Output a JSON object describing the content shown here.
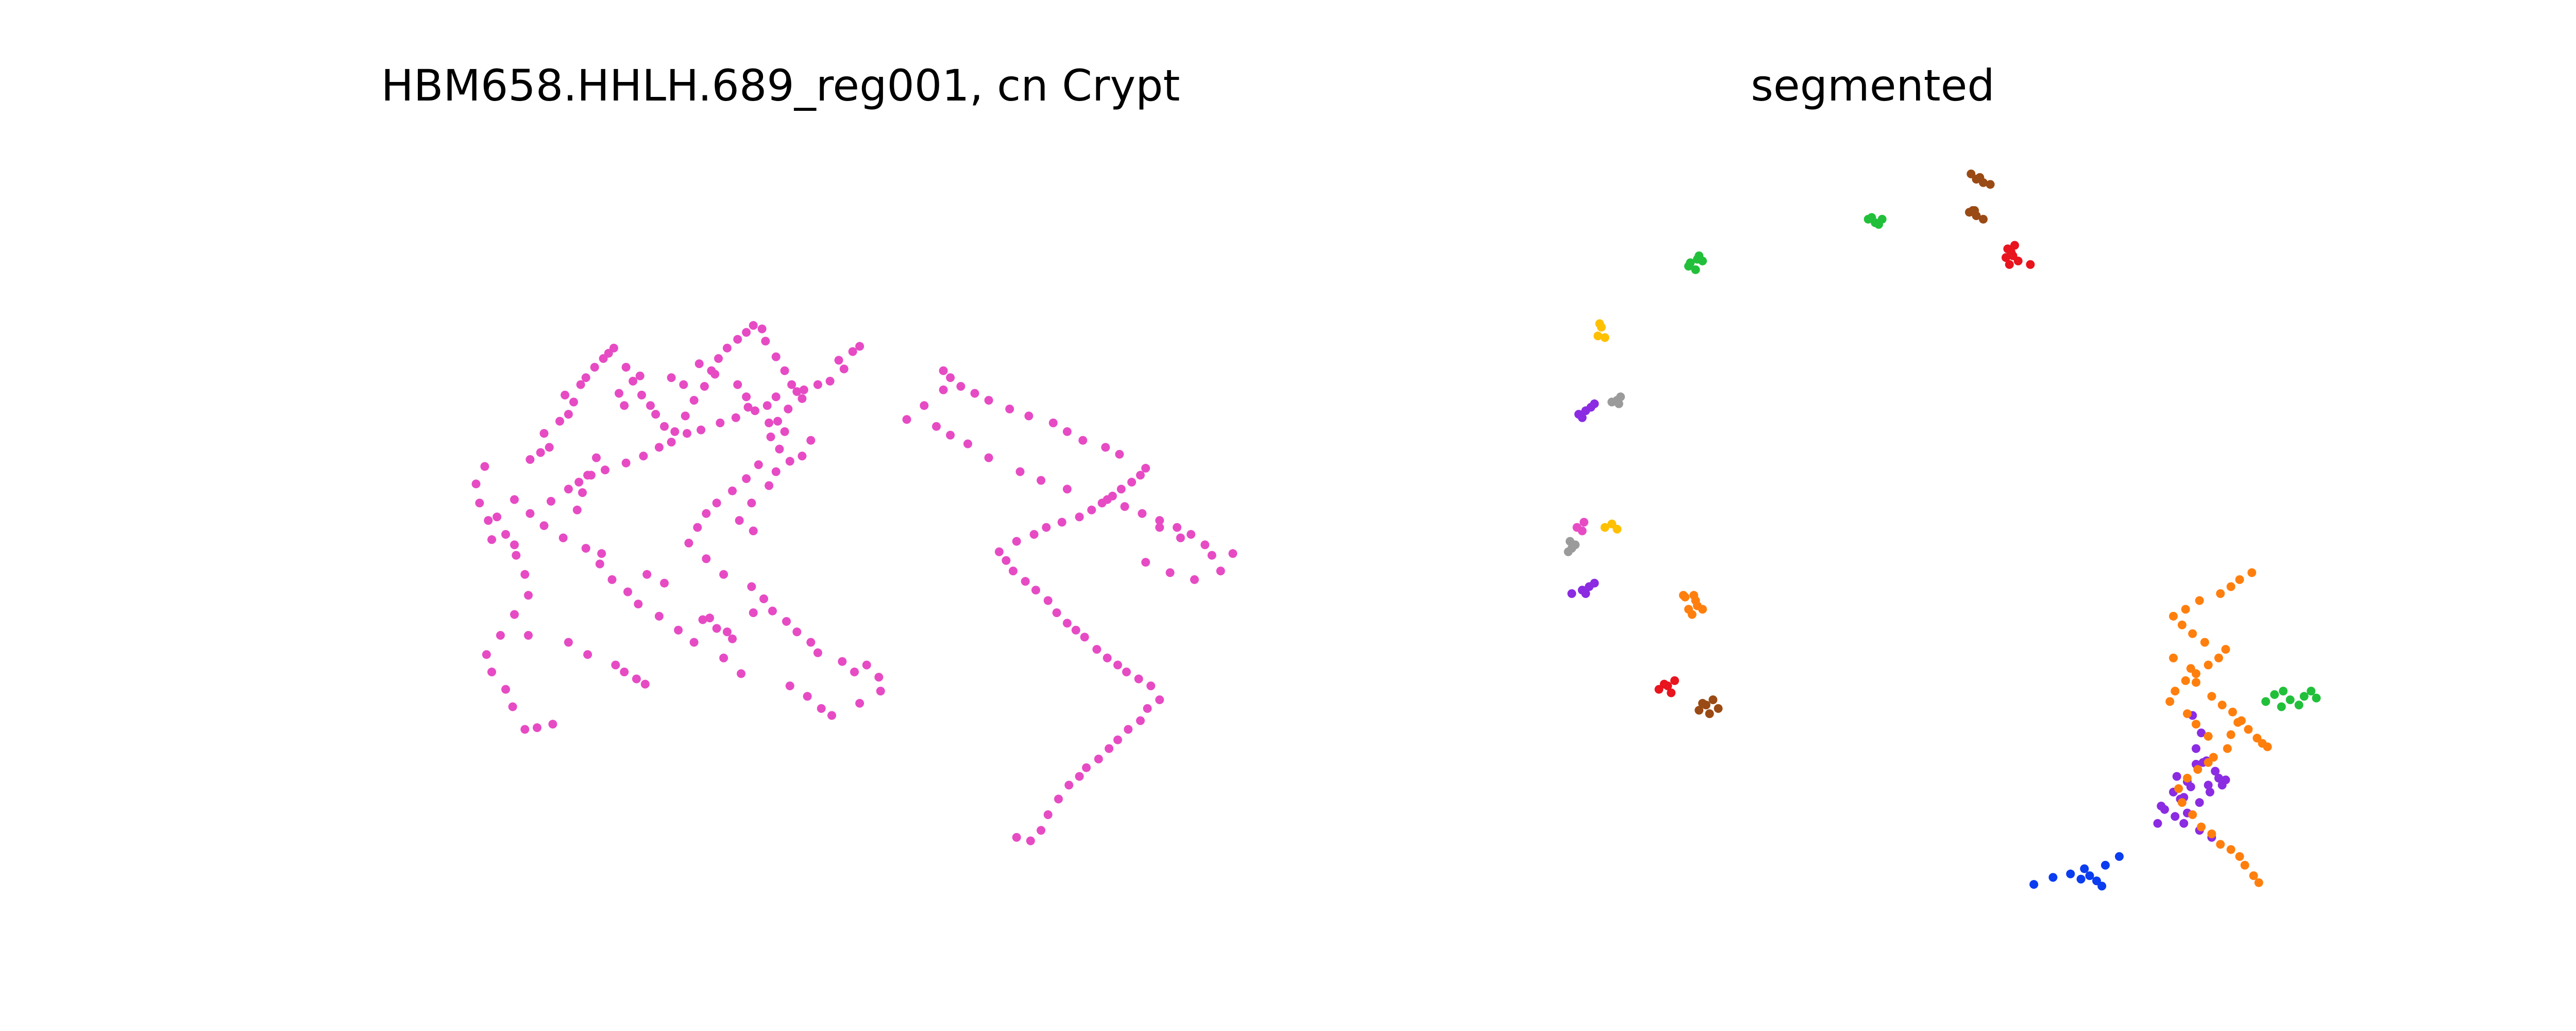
{
  "figure": {
    "background": "#ffffff",
    "point_radius_units": 1
  },
  "chart_data": [
    {
      "type": "scatter",
      "title": "HBM658.HHLH.689_reg001, cn Crypt",
      "axes_visible": false,
      "grid": false,
      "xlim": [
        0,
        520
      ],
      "ylim": [
        0,
        450
      ],
      "series": [
        {
          "color": "#e64bc4",
          "x": [
            106,
            113,
            122,
            99,
            95,
            87,
            84,
            92,
            100,
            108,
            106,
            101,
            87,
            85,
            80,
            78,
            83,
            109,
            115,
            120,
            117,
            126,
            131,
            134,
            129,
            138,
            141,
            146,
            151,
            157,
            154,
            164,
            168,
            173,
            178,
            160,
            172,
            163,
            181,
            186,
            192,
            198,
            203,
            197,
            190,
            209,
            213,
            217,
            222,
            228,
            233,
            237,
            242,
            244,
            250,
            255,
            259,
            265,
            257,
            251,
            247,
            252,
            240,
            233,
            225,
            216,
            210,
            205,
            200,
            210,
            220,
            236,
            243,
            248,
            256,
            262,
            270,
            274,
            288,
            295,
            302,
            309,
            310,
            298,
            282,
            276,
            268,
            258,
            230,
            220,
            203,
            194,
            183,
            171,
            165,
            156,
            149,
            141,
            128,
            117,
            109,
            121,
            131,
            137,
            144,
            152,
            164,
            174,
            183,
            190,
            199,
            207,
            218,
            227,
            234,
            245,
            250,
            262,
            266,
            274,
            281,
            289,
            286,
            294,
            298,
            237,
            229,
            236,
            246,
            250,
            258,
            265,
            270,
            255,
            246,
            238,
            233,
            228,
            215,
            206,
            136,
            139,
            142,
            147,
            100,
            90,
            95,
            100,
            150,
            176,
            186,
            208,
            216,
            222,
            225,
            212,
            237,
            108,
            131,
            142,
            158,
            163,
            170,
            175
          ],
          "y": [
            114,
            115,
            117,
            127,
            137,
            147,
            157,
            168,
            180,
            191,
            203,
            214,
            223,
            234,
            244,
            255,
            265,
            269,
            273,
            276,
            284,
            291,
            295,
            302,
            306,
            312,
            316,
            322,
            327,
            333,
            330,
            322,
            314,
            306,
            300,
            307,
            317,
            300,
            295,
            288,
            285,
            294,
            303,
            312,
            316,
            311,
            320,
            327,
            333,
            338,
            342,
            346,
            344,
            337,
            328,
            320,
            312,
            304,
            298,
            291,
            282,
            275,
            266,
            258,
            251,
            244,
            238,
            230,
            221,
            212,
            203,
            196,
            189,
            182,
            176,
            170,
            164,
            158,
            153,
            147,
            151,
            144,
            136,
            129,
            122,
            126,
            133,
            139,
            146,
            155,
            164,
            171,
            179,
            186,
            193,
            200,
            209,
            218,
            224,
            231,
            238,
            245,
            252,
            256,
            260,
            263,
            267,
            271,
            276,
            279,
            284,
            286,
            290,
            293,
            299,
            300,
            305,
            308,
            309,
            312,
            314,
            321,
            326,
            331,
            334,
            228,
            234,
            244,
            254,
            262,
            268,
            271,
            280,
            285,
            290,
            297,
            305,
            312,
            318,
            324,
            240,
            250,
            260,
            270,
            246,
            236,
            226,
            220,
            215,
            203,
            198,
            177,
            172,
            170,
            166,
            178,
            181,
            168,
            164,
            157,
            151,
            147,
            143,
            140
          ]
        },
        {
          "color": "#e64bc4",
          "x": [
            388,
            396,
            402,
            406,
            412,
            418,
            424,
            428,
            435,
            441,
            446,
            452,
            459,
            463,
            470,
            465,
            458,
            451,
            446,
            440,
            434,
            427,
            422,
            417,
            411,
            406,
            399,
            393,
            386,
            382,
            378,
            388,
            398,
            405,
            414,
            424,
            431,
            437,
            443,
            448,
            454,
            459,
            462,
            447,
            439,
            426,
            417,
            409,
            395,
            384,
            372,
            364,
            356,
            350,
            346,
            346,
            335,
            325,
            342,
            350,
            360,
            372,
            390,
            402,
            417,
            440,
            450,
            460,
            470,
            480,
            488,
            496,
            500,
            482,
            470,
            462,
            476,
            490,
            505,
            512
          ],
          "y": [
            52,
            50,
            56,
            65,
            74,
            82,
            87,
            92,
            97,
            103,
            108,
            114,
            119,
            126,
            131,
            139,
            143,
            147,
            151,
            155,
            160,
            167,
            171,
            175,
            181,
            188,
            194,
            199,
            205,
            211,
            216,
            222,
            226,
            230,
            233,
            236,
            240,
            244,
            248,
            252,
            256,
            260,
            264,
            272,
            276,
            280,
            285,
            290,
            294,
            298,
            303,
            307,
            311,
            316,
            320,
            309,
            300,
            292,
            288,
            283,
            278,
            270,
            262,
            257,
            252,
            246,
            242,
            238,
            234,
            230,
            226,
            220,
            214,
            224,
            230,
            210,
            204,
            200,
            205,
            215
          ]
        }
      ]
    },
    {
      "type": "scatter",
      "title": "segmented",
      "axes_visible": false,
      "grid": false,
      "xlim": [
        0,
        520
      ],
      "ylim": [
        0,
        450
      ],
      "series": [
        {
          "color": "#9a4a14",
          "x": [
            309,
            312,
            316,
            320,
            314,
            310,
            308,
            312,
            316,
            311
          ],
          "y": [
            433,
            430,
            428,
            427,
            431,
            412,
            411,
            409,
            407,
            412
          ]
        },
        {
          "color": "#e8141e",
          "x": [
            330,
            334,
            333,
            329,
            331,
            336,
            343,
            332
          ],
          "y": [
            390,
            392,
            386,
            385,
            381,
            383,
            381,
            388
          ]
        },
        {
          "color": "#22c03a",
          "x": [
            148,
            152,
            155,
            151,
            147,
            153,
            250,
            254,
            258,
            252,
            256
          ],
          "y": [
            382,
            384,
            383,
            378,
            380,
            386,
            407,
            405,
            407,
            408,
            404
          ]
        },
        {
          "color": "#ffc000",
          "x": [
            95,
            97,
            96,
            99,
            99,
            103,
            106
          ],
          "y": [
            340,
            345,
            347,
            339,
            230,
            232,
            229
          ]
        },
        {
          "color": "#9b9b9b",
          "x": [
            103,
            106,
            108,
            107,
            78,
            80,
            82,
            79
          ],
          "y": [
            302,
            303,
            305,
            301,
            216,
            218,
            220,
            222
          ]
        },
        {
          "color": "#8b2be2",
          "x": [
            84,
            88,
            91,
            93,
            86,
            80,
            86,
            90,
            93,
            88
          ],
          "y": [
            295,
            297,
            299,
            301,
            293,
            192,
            194,
            196,
            198,
            192
          ]
        },
        {
          "color": "#e64bc4",
          "x": [
            83,
            87,
            86
          ],
          "y": [
            230,
            233,
            228
          ]
        },
        {
          "color": "#ff7f0e",
          "x": [
            145,
            151,
            155,
            149,
            152,
            147,
            144,
            150
          ],
          "y": [
            190,
            188,
            183,
            180,
            185,
            183,
            191,
            191
          ]
        },
        {
          "color": "#e8141e",
          "x": [
            130,
            135,
            139,
            137,
            133
          ],
          "y": [
            137,
            139,
            142,
            135,
            140
          ]
        },
        {
          "color": "#9a4a14",
          "x": [
            153,
            157,
            161,
            164,
            159,
            155
          ],
          "y": [
            125,
            128,
            131,
            126,
            123,
            129
          ]
        },
        {
          "color": "#8b2be2",
          "x": [
            441,
            436,
            438,
            442,
            449,
            455,
            445,
            431,
            425,
            418,
            420,
            426,
            433,
            440,
            446,
            453,
            451,
            427,
            433,
            438,
            444,
            416,
            431,
            440,
            447,
            429,
            435
          ],
          "y": [
            112,
            122,
            103,
            95,
            90,
            85,
            82,
            75,
            78,
            70,
            68,
            64,
            66,
            72,
            78,
            82,
            86,
            87,
            84,
            94,
            96,
            60,
            60,
            56,
            52,
            74,
            81
          ]
        },
        {
          "color": "#ff7f0e",
          "x": [
            425,
            435,
            438,
            447,
            453,
            459,
            464,
            468,
            473,
            476,
            479,
            462,
            458,
            456,
            448,
            445,
            439,
            433,
            428,
            430,
            436,
            441,
            447,
            452,
            458,
            463,
            466,
            471,
            474,
            445,
            438,
            433,
            423,
            426,
            432,
            438,
            445,
            451,
            455,
            443,
            436,
            430,
            425,
            432,
            440,
            452,
            458,
            463,
            470
          ],
          "y": [
            155,
            149,
            141,
            133,
            128,
            124,
            119,
            114,
            109,
            106,
            104,
            118,
            111,
            103,
            98,
            95,
            91,
            86,
            80,
            72,
            65,
            58,
            54,
            48,
            45,
            41,
            36,
            30,
            26,
            110,
            117,
            123,
            130,
            136,
            142,
            146,
            151,
            155,
            160,
            164,
            169,
            174,
            179,
            183,
            188,
            192,
            196,
            200,
            204
          ]
        },
        {
          "color": "#22c03a",
          "x": [
            478,
            483,
            488,
            492,
            497,
            500,
            504,
            507,
            487
          ],
          "y": [
            130,
            134,
            136,
            131,
            128,
            133,
            136,
            132,
            127
          ]
        },
        {
          "color": "#0a3cf0",
          "x": [
            345,
            356,
            366,
            374,
            377,
            381,
            384,
            372,
            386,
            394
          ],
          "y": [
            25,
            29,
            31,
            34,
            30,
            27,
            24,
            28,
            36,
            41
          ]
        }
      ]
    }
  ]
}
